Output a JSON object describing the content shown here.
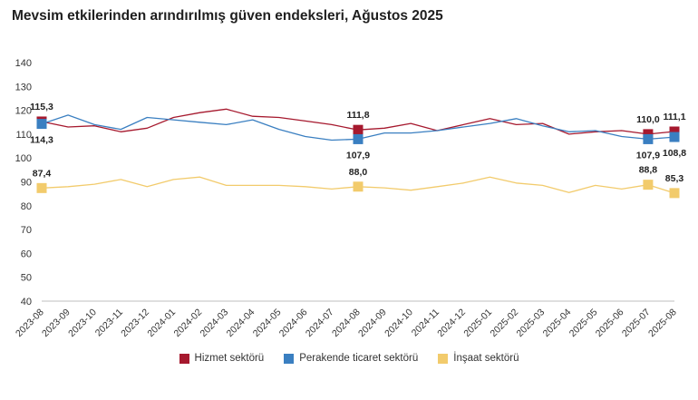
{
  "title": "Mevsim etkilerinden arındırılmış güven endeksleri, Ağustos 2025",
  "chart_data": {
    "type": "line",
    "title": "Mevsim etkilerinden arındırılmış güven endeksleri, Ağustos 2025",
    "xlabel": "",
    "ylabel": "",
    "ylim": [
      40,
      140
    ],
    "yticks": [
      40,
      50,
      60,
      70,
      80,
      90,
      100,
      110,
      120,
      130,
      140
    ],
    "grid": false,
    "legend_position": "bottom",
    "categories": [
      "2023-08",
      "2023-09",
      "2023-10",
      "2023-11",
      "2023-12",
      "2024-01",
      "2024-02",
      "2024-03",
      "2024-04",
      "2024-05",
      "2024-06",
      "2024-07",
      "2024-08",
      "2024-09",
      "2024-10",
      "2024-11",
      "2024-12",
      "2025-01",
      "2025-02",
      "2025-03",
      "2025-04",
      "2025-05",
      "2025-06",
      "2025-07",
      "2025-08"
    ],
    "series": [
      {
        "name": "Hizmet sektörü",
        "color": "#a6192e",
        "values": [
          115.3,
          113.0,
          113.5,
          111.0,
          112.5,
          117.0,
          119.0,
          120.5,
          117.5,
          117.0,
          115.5,
          114.0,
          111.8,
          112.5,
          114.5,
          111.5,
          114.0,
          116.5,
          114.0,
          114.5,
          110.0,
          111.0,
          111.5,
          110.0,
          111.1
        ]
      },
      {
        "name": "Perakende ticaret sektörü",
        "color": "#3a7fc1",
        "values": [
          114.3,
          118.0,
          114.0,
          112.0,
          117.0,
          116.0,
          115.0,
          114.0,
          116.0,
          112.0,
          109.0,
          107.5,
          107.9,
          110.5,
          110.5,
          111.5,
          113.0,
          114.5,
          116.5,
          113.5,
          111.0,
          111.5,
          109.0,
          107.9,
          108.8
        ]
      },
      {
        "name": "İnşaat sektörü",
        "color": "#f2cb6c",
        "values": [
          87.4,
          88.0,
          89.0,
          91.0,
          88.0,
          91.0,
          92.0,
          88.5,
          88.5,
          88.5,
          88.0,
          87.0,
          88.0,
          87.5,
          86.5,
          88.0,
          89.5,
          92.0,
          89.5,
          88.5,
          85.5,
          88.5,
          87.0,
          88.8,
          85.3
        ]
      }
    ],
    "annotations": [
      {
        "series": 0,
        "index": 0,
        "label": "115,3",
        "pos": "above"
      },
      {
        "series": 1,
        "index": 0,
        "label": "114,3",
        "pos": "below"
      },
      {
        "series": 2,
        "index": 0,
        "label": "87,4",
        "pos": "above"
      },
      {
        "series": 0,
        "index": 12,
        "label": "111,8",
        "pos": "above"
      },
      {
        "series": 1,
        "index": 12,
        "label": "107,9",
        "pos": "below"
      },
      {
        "series": 2,
        "index": 12,
        "label": "88,0",
        "pos": "above"
      },
      {
        "series": 0,
        "index": 23,
        "label": "110,0",
        "pos": "above"
      },
      {
        "series": 1,
        "index": 23,
        "label": "107,9",
        "pos": "below"
      },
      {
        "series": 2,
        "index": 23,
        "label": "88,8",
        "pos": "above"
      },
      {
        "series": 0,
        "index": 24,
        "label": "111,1",
        "pos": "above"
      },
      {
        "series": 1,
        "index": 24,
        "label": "108,8",
        "pos": "below"
      },
      {
        "series": 2,
        "index": 24,
        "label": "85,3",
        "pos": "above"
      }
    ]
  }
}
